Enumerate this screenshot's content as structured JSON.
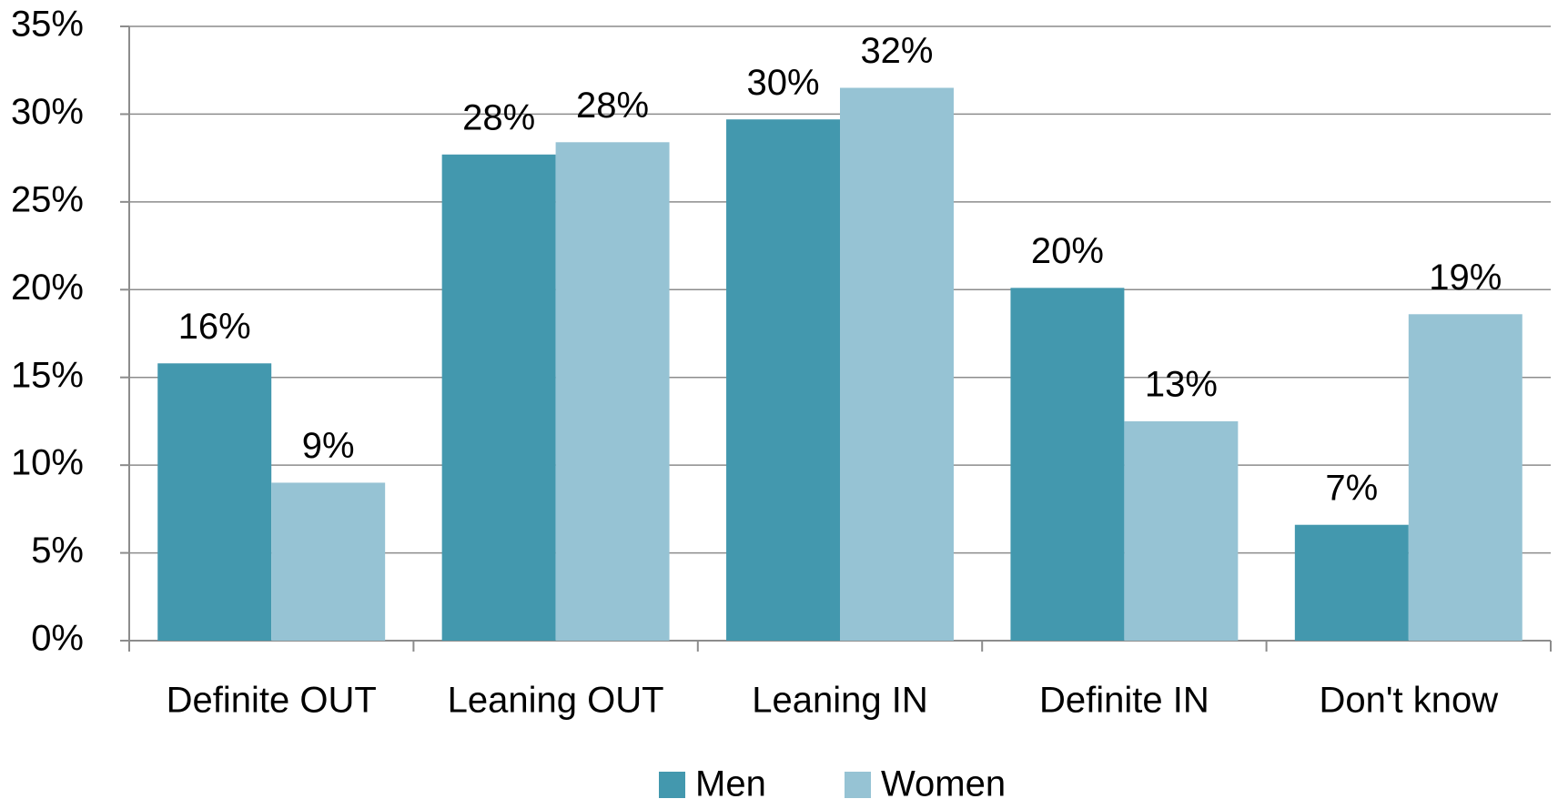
{
  "chart_data": {
    "type": "bar",
    "categories": [
      "Definite OUT",
      "Leaning OUT",
      "Leaning IN",
      "Definite IN",
      "Don't know"
    ],
    "series": [
      {
        "name": "Men",
        "color": "#4398ae",
        "values": [
          15.8,
          27.7,
          29.7,
          20.1,
          6.6
        ],
        "value_labels": [
          "16%",
          "28%",
          "30%",
          "20%",
          "7%"
        ]
      },
      {
        "name": "Women",
        "color": "#96c3d4",
        "values": [
          9.0,
          28.4,
          31.5,
          12.5,
          18.6
        ],
        "value_labels": [
          "9%",
          "28%",
          "32%",
          "13%",
          "19%"
        ]
      }
    ],
    "ylim": [
      0,
      35
    ],
    "yticks": [
      {
        "value": 0,
        "label": "0%"
      },
      {
        "value": 5,
        "label": "5%"
      },
      {
        "value": 10,
        "label": "10%"
      },
      {
        "value": 15,
        "label": "15%"
      },
      {
        "value": 20,
        "label": "20%"
      },
      {
        "value": 25,
        "label": "25%"
      },
      {
        "value": 30,
        "label": "30%"
      },
      {
        "value": 35,
        "label": "35%"
      }
    ],
    "grid": true,
    "legend": "bottom"
  }
}
